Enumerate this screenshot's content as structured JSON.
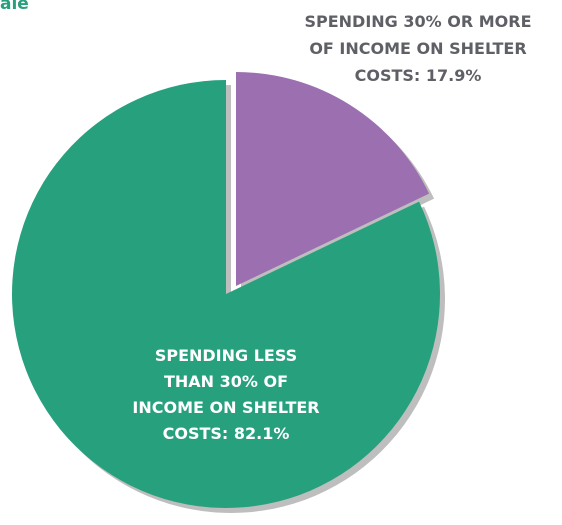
{
  "heading": "ale",
  "chart_data": {
    "type": "pie",
    "series": [
      {
        "label_lines": [
          "SPENDING LESS",
          "THAN  30% OF",
          "INCOME ON SHELTER",
          "COSTS: 82.1%"
        ],
        "value": 82.1,
        "color": "#27a07e"
      },
      {
        "label_lines": [
          "SPENDING 30% OR MORE",
          "OF INCOME ON SHELTER",
          "COSTS: 17.9%"
        ],
        "value": 17.9,
        "color": "#9b6fb0"
      }
    ]
  }
}
